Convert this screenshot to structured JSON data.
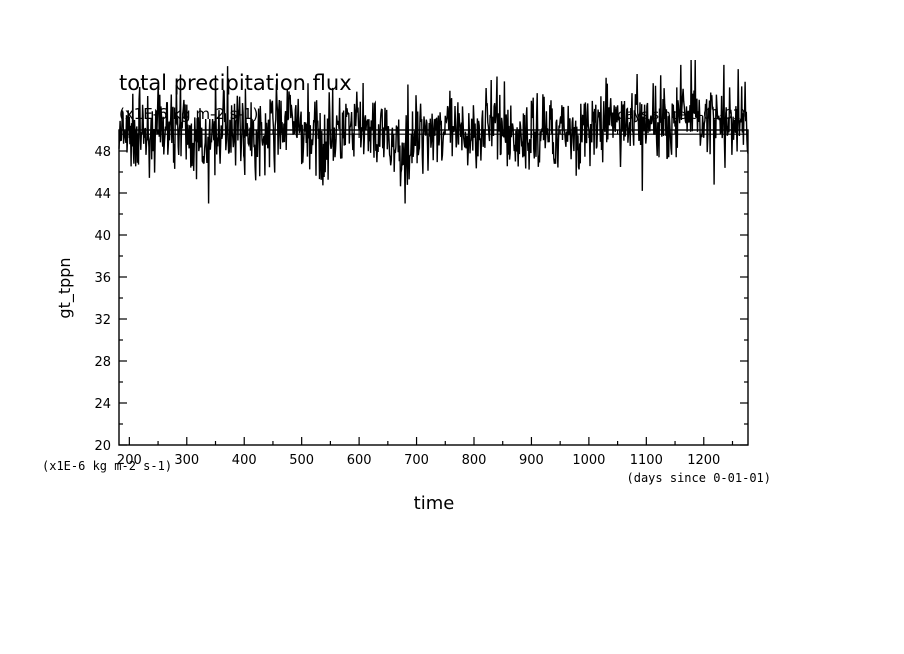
{
  "chart_data": {
    "type": "line",
    "title": "total precipitation flux",
    "subtitle_left": "(x1E-6 kg m-2 s-1)",
    "subtitle_right": "(days since 0-01-01)",
    "xlabel": "time",
    "ylabel": "gt_tppn",
    "y_units": "(x1E-6 kg m-2 s-1)",
    "x_units": "(days since 0-01-01)",
    "xlim": [
      182,
      1277
    ],
    "ylim": [
      20,
      50
    ],
    "x_ticks": [
      200,
      300,
      400,
      500,
      600,
      700,
      800,
      900,
      1000,
      1100,
      1200
    ],
    "y_ticks": [
      20,
      24,
      28,
      32,
      36,
      40,
      44,
      48
    ],
    "grid": false,
    "series": [
      {
        "name": "",
        "mean": 49.6,
        "x": [
          182,
          230,
          280,
          330,
          380,
          430,
          480,
          530,
          580,
          630,
          680,
          730,
          780,
          830,
          880,
          930,
          980,
          1030,
          1080,
          1130,
          1180,
          1230,
          1277
        ],
        "y": [
          49.2,
          49.8,
          50.3,
          48.4,
          50.6,
          49.1,
          50.9,
          48.8,
          50.2,
          49.5,
          48.1,
          50.4,
          49.3,
          50.8,
          49.0,
          50.1,
          49.6,
          50.5,
          50.9,
          50.7,
          51.6,
          50.4,
          50.8
        ],
        "minima": [
          [
            338,
            43.0
          ],
          [
            680,
            43.0
          ],
          [
            1093,
            44.2
          ],
          [
            1218,
            44.8
          ],
          [
            420,
            45.2
          ]
        ],
        "maxima": [
          [
            350,
            55.2
          ],
          [
            1160,
            56.2
          ],
          [
            1178,
            57.5
          ],
          [
            1235,
            56.2
          ],
          [
            1260,
            55.8
          ]
        ]
      }
    ]
  },
  "color_line": "#000000",
  "color_background": "#ffffff"
}
